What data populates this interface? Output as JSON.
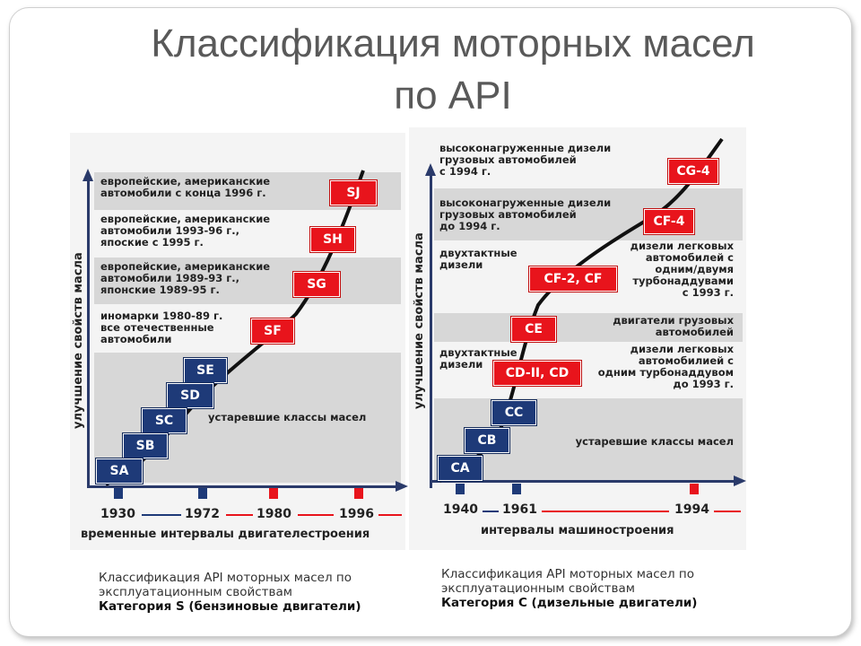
{
  "title": {
    "line1": "Классификация моторных масел",
    "line2": "по API"
  },
  "left_chart": {
    "y_axis_label": "улучшение свойств масла",
    "blocks": [
      "европейские, американские\nавтомобили с конца 1996 г.",
      "европейские, американские\nавтомобили 1993-96 г.,\nяпоские с 1995 г.",
      "европейские, американские\nавтомобили 1989-93 г.,\nяпонские 1989-95 г.",
      "иномарки 1980-89 г.\nвсе отечественные\nавтомобили",
      "устаревшие классы масел"
    ],
    "classes_current": [
      "SJ",
      "SH",
      "SG",
      "SF"
    ],
    "classes_obsolete": [
      "SE",
      "SD",
      "SC",
      "SB",
      "SA"
    ],
    "years": [
      "1930",
      "1972",
      "1980",
      "1996"
    ],
    "x_axis_label": "временные интервалы двигателестроения",
    "caption_line1": "Классификация API моторных масел по",
    "caption_line2": "эксплуатационным свойствам",
    "caption_line3": "Категория S (бензиновые двигатели)"
  },
  "right_chart": {
    "y_axis_label": "улучшение свойств масла",
    "labels_left": [
      "высоконагруженные дизели\nгрузовых автомобилей\nс 1994 г.",
      "высоконагруженные дизели\nгрузовых автомобилей\nдо 1994 г.",
      "двухтактные\nдизели",
      "двухтактные\nдизели"
    ],
    "labels_right": [
      "дизели легковых\nавтомобилей с\nодним/двумя\nтурбонаддувами\nс 1993 г.",
      "двигатели грузовых\nавтомобилей",
      "дизели легковых\nавтомобилией с\nодним турбонаддувом\nдо 1993 г.",
      "устаревшие классы масел"
    ],
    "classes_current": [
      "CG-4",
      "CF-4",
      "CF-2, CF",
      "CE",
      "CD-II, CD"
    ],
    "classes_obsolete": [
      "CC",
      "CB",
      "CA"
    ],
    "years": [
      "1940",
      "1961",
      "1994"
    ],
    "x_axis_label": "интервалы машиностроения",
    "caption_line1": "Классификация API моторных масел по",
    "caption_line2": "эксплуатационным свойствам",
    "caption_line3": "Категория С (дизельные двигатели)"
  }
}
